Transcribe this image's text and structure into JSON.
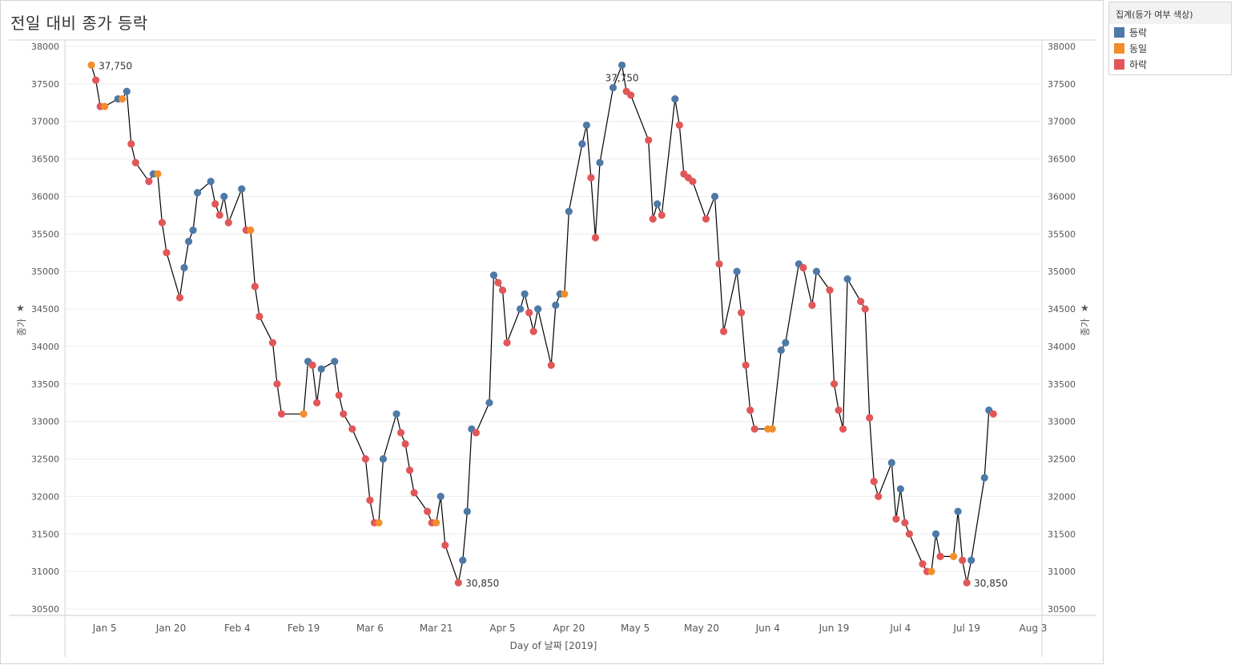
{
  "title": "전일 대비 종가 등락",
  "legend": {
    "title": "집계(등가 여부 색상)",
    "items": [
      {
        "label": "등락",
        "color": "#4e79a7"
      },
      {
        "label": "동일",
        "color": "#f28e2b"
      },
      {
        "label": "하락",
        "color": "#e15759"
      }
    ]
  },
  "pin_icon": "pin-icon",
  "chart_data": {
    "type": "line",
    "title": "전일 대비 종가 등락",
    "xlabel": "Day of 날짜 [2019]",
    "ylabel": "종가",
    "ylim": [
      30500,
      38000
    ],
    "yticks": [
      30500,
      31000,
      31500,
      32000,
      32500,
      33000,
      33500,
      34000,
      34500,
      35000,
      35500,
      36000,
      36500,
      37000,
      37500,
      38000
    ],
    "xlim": [
      "2018-12-27",
      "2019-08-05"
    ],
    "xticks": [
      {
        "date": "2019-01-05",
        "label": "Jan 5"
      },
      {
        "date": "2019-01-20",
        "label": "Jan 20"
      },
      {
        "date": "2019-02-04",
        "label": "Feb 4"
      },
      {
        "date": "2019-02-19",
        "label": "Feb 19"
      },
      {
        "date": "2019-03-06",
        "label": "Mar 6"
      },
      {
        "date": "2019-03-21",
        "label": "Mar 21"
      },
      {
        "date": "2019-04-05",
        "label": "Apr 5"
      },
      {
        "date": "2019-04-20",
        "label": "Apr 20"
      },
      {
        "date": "2019-05-05",
        "label": "May 5"
      },
      {
        "date": "2019-05-20",
        "label": "May 20"
      },
      {
        "date": "2019-06-04",
        "label": "Jun 4"
      },
      {
        "date": "2019-06-19",
        "label": "Jun 19"
      },
      {
        "date": "2019-07-04",
        "label": "Jul 4"
      },
      {
        "date": "2019-07-19",
        "label": "Jul 19"
      },
      {
        "date": "2019-08-03",
        "label": "Aug 3"
      }
    ],
    "grid": true,
    "legend_position": "right",
    "status_colors": {
      "up": "#4e79a7",
      "same": "#f28e2b",
      "down": "#e15759"
    },
    "line_color": "#000000",
    "points": [
      {
        "x": "2019-01-02",
        "y": 37750,
        "s": "same"
      },
      {
        "x": "2019-01-03",
        "y": 37550,
        "s": "down"
      },
      {
        "x": "2019-01-04",
        "y": 37200,
        "s": "down"
      },
      {
        "x": "2019-01-05",
        "y": 37200,
        "s": "same"
      },
      {
        "x": "2019-01-08",
        "y": 37300,
        "s": "up"
      },
      {
        "x": "2019-01-09",
        "y": 37300,
        "s": "same"
      },
      {
        "x": "2019-01-10",
        "y": 37400,
        "s": "up"
      },
      {
        "x": "2019-01-11",
        "y": 36700,
        "s": "down"
      },
      {
        "x": "2019-01-12",
        "y": 36450,
        "s": "down"
      },
      {
        "x": "2019-01-15",
        "y": 36200,
        "s": "down"
      },
      {
        "x": "2019-01-16",
        "y": 36300,
        "s": "up"
      },
      {
        "x": "2019-01-17",
        "y": 36300,
        "s": "same"
      },
      {
        "x": "2019-01-18",
        "y": 35650,
        "s": "down"
      },
      {
        "x": "2019-01-19",
        "y": 35250,
        "s": "down"
      },
      {
        "x": "2019-01-22",
        "y": 34650,
        "s": "down"
      },
      {
        "x": "2019-01-23",
        "y": 35050,
        "s": "up"
      },
      {
        "x": "2019-01-24",
        "y": 35400,
        "s": "up"
      },
      {
        "x": "2019-01-25",
        "y": 35550,
        "s": "up"
      },
      {
        "x": "2019-01-26",
        "y": 36050,
        "s": "up"
      },
      {
        "x": "2019-01-29",
        "y": 36200,
        "s": "up"
      },
      {
        "x": "2019-01-30",
        "y": 35900,
        "s": "down"
      },
      {
        "x": "2019-01-31",
        "y": 35750,
        "s": "down"
      },
      {
        "x": "2019-02-01",
        "y": 36000,
        "s": "up"
      },
      {
        "x": "2019-02-02",
        "y": 35650,
        "s": "down"
      },
      {
        "x": "2019-02-05",
        "y": 36100,
        "s": "up"
      },
      {
        "x": "2019-02-06",
        "y": 35550,
        "s": "down"
      },
      {
        "x": "2019-02-07",
        "y": 35550,
        "s": "same"
      },
      {
        "x": "2019-02-08",
        "y": 34800,
        "s": "down"
      },
      {
        "x": "2019-02-09",
        "y": 34400,
        "s": "down"
      },
      {
        "x": "2019-02-12",
        "y": 34050,
        "s": "down"
      },
      {
        "x": "2019-02-13",
        "y": 33500,
        "s": "down"
      },
      {
        "x": "2019-02-14",
        "y": 33100,
        "s": "down"
      },
      {
        "x": "2019-02-19",
        "y": 33100,
        "s": "same"
      },
      {
        "x": "2019-02-20",
        "y": 33800,
        "s": "up"
      },
      {
        "x": "2019-02-21",
        "y": 33750,
        "s": "down"
      },
      {
        "x": "2019-02-22",
        "y": 33250,
        "s": "down"
      },
      {
        "x": "2019-02-23",
        "y": 33700,
        "s": "up"
      },
      {
        "x": "2019-02-26",
        "y": 33800,
        "s": "up"
      },
      {
        "x": "2019-02-27",
        "y": 33350,
        "s": "down"
      },
      {
        "x": "2019-02-28",
        "y": 33100,
        "s": "down"
      },
      {
        "x": "2019-03-02",
        "y": 32900,
        "s": "down"
      },
      {
        "x": "2019-03-05",
        "y": 32500,
        "s": "down"
      },
      {
        "x": "2019-03-06",
        "y": 31950,
        "s": "down"
      },
      {
        "x": "2019-03-07",
        "y": 31650,
        "s": "down"
      },
      {
        "x": "2019-03-08",
        "y": 31650,
        "s": "same"
      },
      {
        "x": "2019-03-09",
        "y": 32500,
        "s": "up"
      },
      {
        "x": "2019-03-12",
        "y": 33100,
        "s": "up"
      },
      {
        "x": "2019-03-13",
        "y": 32850,
        "s": "down"
      },
      {
        "x": "2019-03-14",
        "y": 32700,
        "s": "down"
      },
      {
        "x": "2019-03-15",
        "y": 32350,
        "s": "down"
      },
      {
        "x": "2019-03-16",
        "y": 32050,
        "s": "down"
      },
      {
        "x": "2019-03-19",
        "y": 31800,
        "s": "down"
      },
      {
        "x": "2019-03-20",
        "y": 31650,
        "s": "down"
      },
      {
        "x": "2019-03-21",
        "y": 31650,
        "s": "same"
      },
      {
        "x": "2019-03-22",
        "y": 32000,
        "s": "up"
      },
      {
        "x": "2019-03-23",
        "y": 31350,
        "s": "down"
      },
      {
        "x": "2019-03-26",
        "y": 30850,
        "s": "down"
      },
      {
        "x": "2019-03-27",
        "y": 31150,
        "s": "up"
      },
      {
        "x": "2019-03-28",
        "y": 31800,
        "s": "up"
      },
      {
        "x": "2019-03-29",
        "y": 32900,
        "s": "up"
      },
      {
        "x": "2019-03-30",
        "y": 32850,
        "s": "down"
      },
      {
        "x": "2019-04-02",
        "y": 33250,
        "s": "up"
      },
      {
        "x": "2019-04-03",
        "y": 34950,
        "s": "up"
      },
      {
        "x": "2019-04-04",
        "y": 34850,
        "s": "down"
      },
      {
        "x": "2019-04-05",
        "y": 34750,
        "s": "down"
      },
      {
        "x": "2019-04-06",
        "y": 34050,
        "s": "down"
      },
      {
        "x": "2019-04-09",
        "y": 34500,
        "s": "up"
      },
      {
        "x": "2019-04-10",
        "y": 34700,
        "s": "up"
      },
      {
        "x": "2019-04-11",
        "y": 34450,
        "s": "down"
      },
      {
        "x": "2019-04-12",
        "y": 34200,
        "s": "down"
      },
      {
        "x": "2019-04-13",
        "y": 34500,
        "s": "up"
      },
      {
        "x": "2019-04-16",
        "y": 33750,
        "s": "down"
      },
      {
        "x": "2019-04-17",
        "y": 34550,
        "s": "up"
      },
      {
        "x": "2019-04-18",
        "y": 34700,
        "s": "up"
      },
      {
        "x": "2019-04-19",
        "y": 34700,
        "s": "same"
      },
      {
        "x": "2019-04-20",
        "y": 35800,
        "s": "up"
      },
      {
        "x": "2019-04-23",
        "y": 36700,
        "s": "up"
      },
      {
        "x": "2019-04-24",
        "y": 36950,
        "s": "up"
      },
      {
        "x": "2019-04-25",
        "y": 36250,
        "s": "down"
      },
      {
        "x": "2019-04-26",
        "y": 35450,
        "s": "down"
      },
      {
        "x": "2019-04-27",
        "y": 36450,
        "s": "up"
      },
      {
        "x": "2019-04-30",
        "y": 37450,
        "s": "up"
      },
      {
        "x": "2019-05-02",
        "y": 37750,
        "s": "up"
      },
      {
        "x": "2019-05-03",
        "y": 37400,
        "s": "down"
      },
      {
        "x": "2019-05-04",
        "y": 37350,
        "s": "down"
      },
      {
        "x": "2019-05-08",
        "y": 36750,
        "s": "down"
      },
      {
        "x": "2019-05-09",
        "y": 35700,
        "s": "down"
      },
      {
        "x": "2019-05-10",
        "y": 35900,
        "s": "up"
      },
      {
        "x": "2019-05-11",
        "y": 35750,
        "s": "down"
      },
      {
        "x": "2019-05-14",
        "y": 37300,
        "s": "up"
      },
      {
        "x": "2019-05-15",
        "y": 36950,
        "s": "down"
      },
      {
        "x": "2019-05-16",
        "y": 36300,
        "s": "down"
      },
      {
        "x": "2019-05-17",
        "y": 36250,
        "s": "down"
      },
      {
        "x": "2019-05-18",
        "y": 36200,
        "s": "down"
      },
      {
        "x": "2019-05-21",
        "y": 35700,
        "s": "down"
      },
      {
        "x": "2019-05-23",
        "y": 36000,
        "s": "up"
      },
      {
        "x": "2019-05-24",
        "y": 35100,
        "s": "down"
      },
      {
        "x": "2019-05-25",
        "y": 34200,
        "s": "down"
      },
      {
        "x": "2019-05-28",
        "y": 35000,
        "s": "up"
      },
      {
        "x": "2019-05-29",
        "y": 34450,
        "s": "down"
      },
      {
        "x": "2019-05-30",
        "y": 33750,
        "s": "down"
      },
      {
        "x": "2019-05-31",
        "y": 33150,
        "s": "down"
      },
      {
        "x": "2019-06-01",
        "y": 32900,
        "s": "down"
      },
      {
        "x": "2019-06-04",
        "y": 32900,
        "s": "same"
      },
      {
        "x": "2019-06-05",
        "y": 32900,
        "s": "same"
      },
      {
        "x": "2019-06-07",
        "y": 33950,
        "s": "up"
      },
      {
        "x": "2019-06-08",
        "y": 34050,
        "s": "up"
      },
      {
        "x": "2019-06-11",
        "y": 35100,
        "s": "up"
      },
      {
        "x": "2019-06-12",
        "y": 35050,
        "s": "down"
      },
      {
        "x": "2019-06-14",
        "y": 34550,
        "s": "down"
      },
      {
        "x": "2019-06-15",
        "y": 35000,
        "s": "up"
      },
      {
        "x": "2019-06-18",
        "y": 34750,
        "s": "down"
      },
      {
        "x": "2019-06-19",
        "y": 33500,
        "s": "down"
      },
      {
        "x": "2019-06-20",
        "y": 33150,
        "s": "down"
      },
      {
        "x": "2019-06-21",
        "y": 32900,
        "s": "down"
      },
      {
        "x": "2019-06-22",
        "y": 34900,
        "s": "up"
      },
      {
        "x": "2019-06-25",
        "y": 34600,
        "s": "down"
      },
      {
        "x": "2019-06-26",
        "y": 34500,
        "s": "down"
      },
      {
        "x": "2019-06-27",
        "y": 33050,
        "s": "down"
      },
      {
        "x": "2019-06-28",
        "y": 32200,
        "s": "down"
      },
      {
        "x": "2019-06-29",
        "y": 32000,
        "s": "down"
      },
      {
        "x": "2019-07-02",
        "y": 32450,
        "s": "up"
      },
      {
        "x": "2019-07-03",
        "y": 31700,
        "s": "down"
      },
      {
        "x": "2019-07-04",
        "y": 32100,
        "s": "up"
      },
      {
        "x": "2019-07-05",
        "y": 31650,
        "s": "down"
      },
      {
        "x": "2019-07-06",
        "y": 31500,
        "s": "down"
      },
      {
        "x": "2019-07-09",
        "y": 31100,
        "s": "down"
      },
      {
        "x": "2019-07-10",
        "y": 31000,
        "s": "down"
      },
      {
        "x": "2019-07-11",
        "y": 31000,
        "s": "same"
      },
      {
        "x": "2019-07-12",
        "y": 31500,
        "s": "up"
      },
      {
        "x": "2019-07-13",
        "y": 31200,
        "s": "down"
      },
      {
        "x": "2019-07-16",
        "y": 31200,
        "s": "same"
      },
      {
        "x": "2019-07-17",
        "y": 31800,
        "s": "up"
      },
      {
        "x": "2019-07-18",
        "y": 31150,
        "s": "down"
      },
      {
        "x": "2019-07-19",
        "y": 30850,
        "s": "down"
      },
      {
        "x": "2019-07-20",
        "y": 31150,
        "s": "up"
      },
      {
        "x": "2019-07-23",
        "y": 32250,
        "s": "up"
      },
      {
        "x": "2019-07-24",
        "y": 33150,
        "s": "up"
      },
      {
        "x": "2019-07-25",
        "y": 33100,
        "s": "down"
      }
    ],
    "annotations": [
      {
        "x": "2019-01-02",
        "y": 37750,
        "label": "37,750",
        "pos": "right"
      },
      {
        "x": "2019-05-02",
        "y": 37750,
        "label": "37,750",
        "pos": "below"
      },
      {
        "x": "2019-03-26",
        "y": 30850,
        "label": "30,850",
        "pos": "right"
      },
      {
        "x": "2019-07-19",
        "y": 30850,
        "label": "30,850",
        "pos": "right"
      }
    ]
  }
}
